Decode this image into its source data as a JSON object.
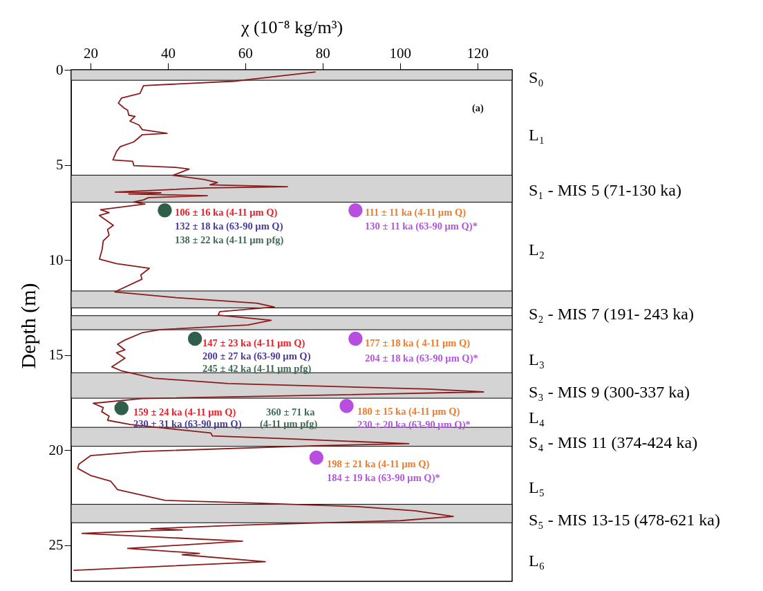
{
  "chart_data": {
    "type": "line",
    "xlabel": "χ (10⁻⁸ kg/m³)",
    "ylabel": "Depth (m)",
    "xlim": [
      15,
      129
    ],
    "xticks": [
      20,
      40,
      60,
      80,
      100,
      120
    ],
    "ylim": [
      26.9,
      0
    ],
    "yticks": [
      0,
      5,
      10,
      15,
      20,
      25
    ],
    "grid": false,
    "series": [
      {
        "color": "#8b1a1a",
        "marker": "none",
        "x": [
          78.2,
          63.6,
          57.2,
          33.7,
          32.8,
          28.0,
          27.2,
          28.6,
          29.6,
          29.9,
          31.5,
          30.2,
          32.5,
          33.4,
          39.8,
          33.4,
          31.2,
          27.7,
          26.7,
          25.8,
          30.9,
          31.2,
          42.0,
          45.5,
          41.3,
          49.3,
          52.8,
          50.9,
          70.9,
          50.2,
          26.4,
          38.2,
          29.9,
          50.2,
          35.0,
          33.7,
          31.1,
          34.1,
          22.6,
          24.8,
          22.3,
          25.9,
          24.4,
          24.8,
          23.3,
          23.0,
          22.3,
          26.7,
          35.2,
          33.0,
          33.3,
          26.3,
          42.2,
          63.0,
          67.5,
          53.4,
          53.0,
          66.7,
          60.7,
          38.1,
          33.3,
          28.9,
          27.0,
          28.9,
          26.7,
          28.9,
          25.5,
          28.1,
          36.3,
          55.6,
          107.5,
          121.6,
          85.2,
          33.3,
          20.7,
          23.3,
          22.9,
          24.8,
          24.4,
          30.3,
          40.8,
          51.1,
          51.5,
          70.4,
          102.3,
          77.8,
          33.3,
          20.0,
          17.0,
          16.7,
          20.0,
          25.2,
          27.0,
          39.3,
          63.0,
          88.9,
          103.8,
          113.8,
          100.1,
          59.3,
          35.6,
          43.7,
          35.6,
          17.8,
          59.3,
          29.6,
          48.2,
          43.7,
          65.2,
          15.6
        ],
        "values": [
          0.11,
          0.45,
          0.6,
          0.83,
          1.24,
          1.49,
          1.75,
          2.0,
          2.13,
          2.39,
          2.45,
          2.7,
          2.9,
          3.15,
          3.34,
          3.41,
          3.79,
          4.04,
          4.3,
          4.74,
          4.81,
          5.04,
          5.13,
          5.22,
          5.55,
          5.77,
          5.93,
          6.05,
          6.15,
          6.21,
          6.43,
          6.47,
          6.53,
          6.62,
          6.72,
          6.84,
          6.96,
          7.06,
          7.36,
          7.51,
          7.66,
          8.18,
          8.4,
          8.7,
          8.99,
          9.44,
          9.96,
          10.19,
          10.44,
          10.79,
          11.01,
          11.68,
          11.98,
          12.27,
          12.47,
          12.72,
          12.9,
          13.17,
          13.42,
          13.66,
          13.83,
          14.21,
          14.43,
          14.73,
          14.88,
          15.17,
          15.62,
          15.84,
          16.22,
          16.5,
          16.79,
          16.94,
          17.09,
          17.29,
          17.54,
          17.76,
          17.98,
          18.21,
          18.43,
          18.65,
          18.88,
          19.1,
          19.25,
          19.4,
          19.66,
          19.77,
          20.07,
          20.29,
          20.74,
          20.96,
          21.33,
          21.63,
          22.08,
          22.64,
          22.79,
          22.97,
          23.19,
          23.49,
          23.71,
          23.94,
          24.13,
          24.2,
          24.23,
          24.38,
          24.79,
          25.17,
          25.43,
          25.5,
          25.87,
          26.32
        ]
      },
      {
        "type": "scatter",
        "color": "#2f5e4b",
        "marker": "circle",
        "x": [
          39.2,
          47.0,
          28.0
        ],
        "values": [
          7.39,
          14.14,
          17.79
        ]
      },
      {
        "type": "scatter",
        "color": "#b84ee0",
        "marker": "circle",
        "x": [
          88.5,
          88.5,
          86.2,
          78.4
        ],
        "values": [
          7.39,
          14.14,
          17.68,
          20.39
        ]
      }
    ],
    "bands": [
      {
        "axis": "y",
        "from": 0,
        "to": 0.55,
        "color": "#d4d4d4"
      },
      {
        "axis": "y",
        "from": 5.54,
        "to": 6.96,
        "color": "#d4d4d4"
      },
      {
        "axis": "y",
        "from": 11.63,
        "to": 12.52,
        "color": "#d4d4d4"
      },
      {
        "axis": "y",
        "from": 12.93,
        "to": 13.67,
        "color": "#d4d4d4"
      },
      {
        "axis": "y",
        "from": 15.93,
        "to": 17.27,
        "color": "#d4d4d4"
      },
      {
        "axis": "y",
        "from": 18.8,
        "to": 19.8,
        "color": "#d4d4d4"
      },
      {
        "axis": "y",
        "from": 22.85,
        "to": 23.82,
        "color": "#d4d4d4"
      }
    ],
    "annotations": [
      "(a)",
      "106 ± 16 ka (4-11 µm Q)",
      "132 ± 18 ka (63-90 µm Q)",
      "138 ± 22 ka (4-11 µm pfg)",
      "111 ± 11 ka (4-11 µm Q)",
      "130 ± 11 ka (63-90 µm Q)*",
      "147 ± 23 ka (4-11 µm Q)",
      "200 ± 27 ka (63-90 µm Q)",
      "245 ± 42 ka (4-11 µm pfg)",
      "177 ± 18 ka ( 4-11 µm Q)",
      "204 ± 18 ka (63-90 µm Q)*",
      "159 ± 24 ka (4-11 µm Q)",
      "230 ± 31 ka (63-90 µm Q)",
      "360 ± 71 ka",
      "(4-11 µm pfg)",
      "180 ± 15 ka (4-11 µm Q)",
      "230  ± 20 ka (63-90 µm Q)*",
      "198 ± 21 ka (4-11 µm Q)",
      "184 ± 19 ka (63-90 µm Q)*",
      "S₀",
      "L₁",
      "S₁ - MIS 5 (71-130 ka)",
      "L₂",
      "S₂ - MIS 7 (191- 243 ka)",
      "L₃",
      "S₃ - MIS 9 (300-337 ka)",
      "L₄",
      "S₄ - MIS 11 (374-424 ka)",
      "L₅",
      "S₅ - MIS 13-15 (478-621 ka)",
      "L₆"
    ]
  }
}
